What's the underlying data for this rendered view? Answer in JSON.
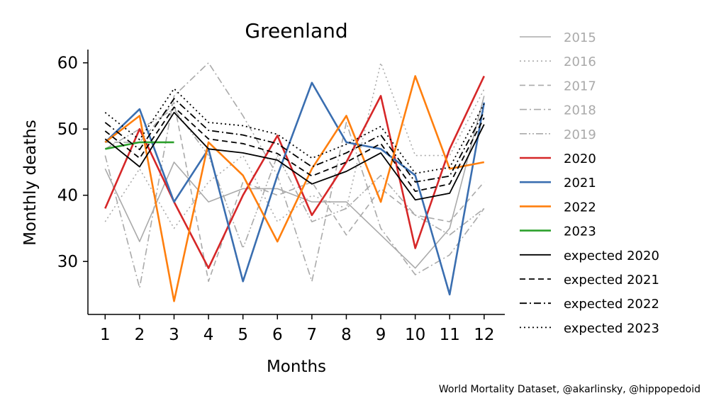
{
  "chart_data": {
    "type": "line",
    "title": "Greenland",
    "xlabel": "Months",
    "ylabel": "Monthly deaths",
    "x": [
      1,
      2,
      3,
      4,
      5,
      6,
      7,
      8,
      9,
      10,
      11,
      12
    ],
    "x_ticks": [
      "1",
      "2",
      "3",
      "4",
      "5",
      "6",
      "7",
      "8",
      "9",
      "10",
      "11",
      "12"
    ],
    "y_ticks": [
      "30",
      "40",
      "50",
      "60"
    ],
    "xlim": [
      0.5,
      12.6
    ],
    "ylim": [
      22,
      62
    ],
    "grid": false,
    "legend_position": "outside-right",
    "series": [
      {
        "name": "2015",
        "color": "#aaaaaa",
        "dash": "solid",
        "values": [
          44,
          33,
          45,
          39,
          41,
          41,
          39,
          39,
          34,
          29,
          35,
          55
        ]
      },
      {
        "name": "2016",
        "color": "#aaaaaa",
        "dash": "dotted",
        "values": [
          36,
          44,
          35,
          42,
          46,
          36,
          40,
          38,
          60,
          46,
          46,
          56
        ]
      },
      {
        "name": "2017",
        "color": "#aaaaaa",
        "dash": "dashed",
        "values": [
          48,
          48,
          54,
          27,
          42,
          40,
          42,
          34,
          41,
          37,
          36,
          42
        ]
      },
      {
        "name": "2018",
        "color": "#aaaaaa",
        "dash": "dashdot",
        "values": [
          46,
          26,
          55,
          60,
          52,
          43,
          27,
          51,
          35,
          28,
          31,
          38
        ]
      },
      {
        "name": "2019",
        "color": "#aaaaaa",
        "dash": "dashdotdot",
        "values": [
          47,
          50,
          53,
          46,
          32,
          46,
          36,
          38,
          43,
          37,
          34,
          38
        ]
      },
      {
        "name": "2020",
        "color": "#d62728",
        "dash": "solid",
        "values": [
          38,
          50,
          39,
          29,
          40,
          49,
          37,
          45,
          55,
          32,
          47,
          58
        ]
      },
      {
        "name": "2021",
        "color": "#3a6eb0",
        "dash": "solid",
        "values": [
          48,
          53,
          39,
          47,
          27,
          43,
          57,
          48,
          47,
          43,
          25,
          54
        ]
      },
      {
        "name": "2022",
        "color": "#ff7f0e",
        "dash": "solid",
        "values": [
          48,
          52,
          24,
          48,
          43,
          33,
          44,
          52,
          39,
          58,
          44,
          45
        ]
      },
      {
        "name": "2023",
        "color": "#2ca02c",
        "dash": "solid",
        "values": [
          47,
          48,
          48,
          null,
          null,
          null,
          null,
          null,
          null,
          null,
          null,
          null
        ]
      },
      {
        "name": "expected 2020",
        "color": "#000000",
        "dash": "solid",
        "values": [
          48.5,
          44.3,
          52.5,
          47.0,
          46.4,
          45.3,
          41.7,
          43.6,
          46.4,
          39.3,
          40.3,
          50.7
        ]
      },
      {
        "name": "expected 2021",
        "color": "#000000",
        "dash": "dashed",
        "values": [
          49.7,
          45.6,
          53.3,
          48.5,
          47.8,
          46.3,
          42.9,
          45.0,
          47.8,
          40.6,
          41.7,
          51.7
        ]
      },
      {
        "name": "expected 2022",
        "color": "#000000",
        "dash": "dashdot",
        "values": [
          51.0,
          46.9,
          54.6,
          49.8,
          49.1,
          47.8,
          44.3,
          46.4,
          49.1,
          42.0,
          42.9,
          52.6
        ]
      },
      {
        "name": "expected 2023",
        "color": "#000000",
        "dash": "dotted",
        "values": [
          52.5,
          48.4,
          56.1,
          51.0,
          50.5,
          49.2,
          45.6,
          47.7,
          50.4,
          43.3,
          44.2,
          53.8
        ]
      }
    ],
    "legend_colors": {
      "historic": "#aaaaaa",
      "current": "#000000"
    },
    "caption": "World Mortality Dataset, @akarlinsky, @hippopedoid"
  }
}
